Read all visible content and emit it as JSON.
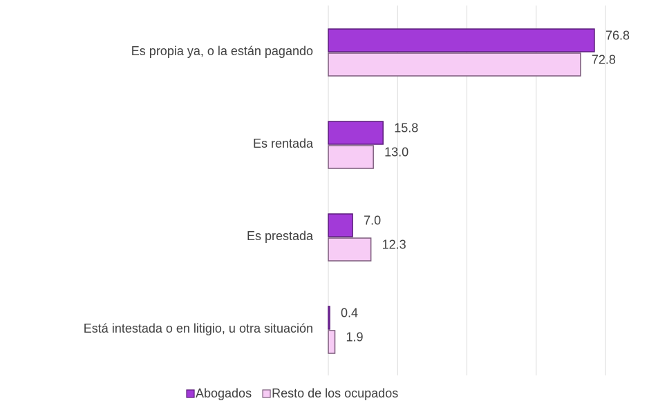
{
  "chart_data": {
    "type": "bar",
    "orientation": "horizontal",
    "categories": [
      "Es propia ya, o la están pagando",
      "Es rentada",
      "Es prestada",
      "Está intestada o en litigio, u otra situación"
    ],
    "series": [
      {
        "name": "Abogados",
        "color": "#a23ad8",
        "values": [
          76.8,
          15.8,
          7.0,
          0.4
        ],
        "value_labels": [
          "76.8",
          "15.8",
          "7.0",
          "0.4"
        ]
      },
      {
        "name": "Resto de los ocupados",
        "color": "#f7ccf5",
        "values": [
          72.8,
          13.0,
          12.3,
          1.9
        ],
        "value_labels": [
          "72.8",
          "13.0",
          "12.3",
          "1.9"
        ]
      }
    ],
    "xlim": [
      0,
      80
    ],
    "xticks": [
      0,
      20,
      40,
      60,
      80
    ],
    "grid": true,
    "legend": "bottom"
  }
}
